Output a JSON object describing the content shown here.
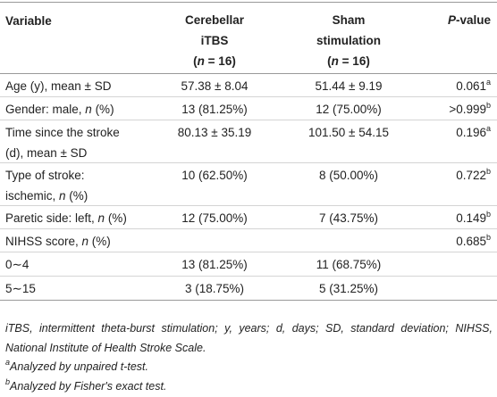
{
  "table": {
    "header": [
      [
        [
          "Variable"
        ]
      ],
      [
        [
          "Cerebellar"
        ],
        [
          "iTBS"
        ],
        [
          "(",
          {
            "text": "n",
            "style": "italic"
          },
          " = 16)"
        ]
      ],
      [
        [
          "Sham"
        ],
        [
          "stimulation"
        ],
        [
          "(",
          {
            "text": "n",
            "style": "italic"
          },
          " = 16)"
        ]
      ],
      [
        [
          {
            "text": "P",
            "style": "italic"
          },
          "-value"
        ]
      ]
    ],
    "rows": [
      [
        [
          [
            "Age (y), mean ± SD"
          ]
        ],
        [
          [
            "57.38 ± 8.04"
          ]
        ],
        [
          [
            "51.44 ± 9.19"
          ]
        ],
        [
          [
            "0.061",
            {
              "text": "a",
              "style": "sup"
            }
          ]
        ]
      ],
      [
        [
          [
            "Gender: male, ",
            {
              "text": "n",
              "style": "italic"
            },
            " (%)"
          ]
        ],
        [
          [
            "13 (81.25%)"
          ]
        ],
        [
          [
            "12 (75.00%)"
          ]
        ],
        [
          [
            ">0.999",
            {
              "text": "b",
              "style": "sup"
            }
          ]
        ]
      ],
      [
        [
          [
            "Time since the stroke"
          ],
          [
            "(d), mean ± SD"
          ]
        ],
        [
          [
            "80.13 ± 35.19"
          ]
        ],
        [
          [
            "101.50 ± 54.15"
          ]
        ],
        [
          [
            "0.196",
            {
              "text": "a",
              "style": "sup"
            }
          ]
        ]
      ],
      [
        [
          [
            "Type of stroke:"
          ],
          [
            "ischemic, ",
            {
              "text": "n",
              "style": "italic"
            },
            " (%)"
          ]
        ],
        [
          [
            "10 (62.50%)"
          ]
        ],
        [
          [
            "8 (50.00%)"
          ]
        ],
        [
          [
            "0.722",
            {
              "text": "b",
              "style": "sup"
            }
          ]
        ]
      ],
      [
        [
          [
            "Paretic side: left, ",
            {
              "text": "n",
              "style": "italic"
            },
            " (%)"
          ]
        ],
        [
          [
            "12 (75.00%)"
          ]
        ],
        [
          [
            "7 (43.75%)"
          ]
        ],
        [
          [
            "0.149",
            {
              "text": "b",
              "style": "sup"
            }
          ]
        ]
      ],
      [
        [
          [
            "NIHSS score, ",
            {
              "text": "n",
              "style": "italic"
            },
            " (%)"
          ]
        ],
        [],
        [],
        [
          [
            "0.685",
            {
              "text": "b",
              "style": "sup"
            }
          ]
        ]
      ],
      [
        [
          [
            "0∼4"
          ]
        ],
        [
          [
            "13 (81.25%)"
          ]
        ],
        [
          [
            "11 (68.75%)"
          ]
        ],
        []
      ],
      [
        [
          [
            "5∼15"
          ]
        ],
        [
          [
            "3 (18.75%)"
          ]
        ],
        [
          [
            "5 (31.25%)"
          ]
        ],
        []
      ]
    ],
    "footnotes": [
      [
        "iTBS, intermittent theta-burst stimulation; y, years; d, days; SD, standard deviation; NIHSS, National Institute of Health Stroke Scale."
      ],
      [
        {
          "text": "a",
          "style": "sup"
        },
        "Analyzed by unpaired t-test."
      ],
      [
        {
          "text": "b",
          "style": "sup"
        },
        "Analyzed by Fisher's exact test."
      ]
    ]
  }
}
